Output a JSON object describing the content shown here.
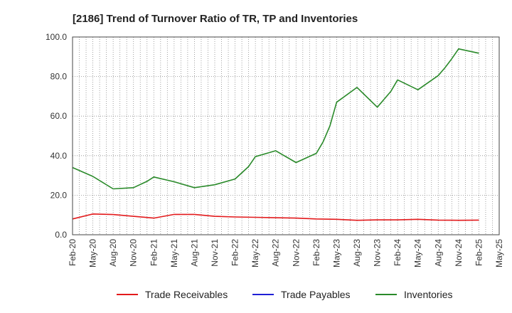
{
  "chart_data": {
    "type": "line",
    "title": "[2186]  Trend of Turnover Ratio of TR, TP and Inventories",
    "xlabel": "",
    "ylabel": "",
    "ylim": [
      0,
      100
    ],
    "yticks": [
      0,
      20,
      40,
      60,
      80,
      100
    ],
    "ytick_labels": [
      "0.0",
      "20.0",
      "40.0",
      "60.0",
      "80.0",
      "100.0"
    ],
    "x_tick_labels": [
      "Feb-20",
      "May-20",
      "Aug-20",
      "Nov-20",
      "Feb-21",
      "May-21",
      "Aug-21",
      "Nov-21",
      "Feb-22",
      "May-22",
      "Aug-22",
      "Nov-22",
      "Feb-23",
      "May-23",
      "Aug-23",
      "Nov-23",
      "Feb-24",
      "May-24",
      "Aug-24",
      "Nov-24",
      "Feb-25",
      "May-25"
    ],
    "x_months": [
      "2020-02",
      "2020-03",
      "2020-04",
      "2020-05",
      "2020-06",
      "2020-07",
      "2020-08",
      "2020-09",
      "2020-10",
      "2020-11",
      "2020-12",
      "2021-01",
      "2021-02",
      "2021-03",
      "2021-04",
      "2021-05",
      "2021-06",
      "2021-07",
      "2021-08",
      "2021-09",
      "2021-10",
      "2021-11",
      "2021-12",
      "2022-01",
      "2022-02",
      "2022-03",
      "2022-04",
      "2022-05",
      "2022-06",
      "2022-07",
      "2022-08",
      "2022-09",
      "2022-10",
      "2022-11",
      "2022-12",
      "2023-01",
      "2023-02",
      "2023-03",
      "2023-04",
      "2023-05",
      "2023-06",
      "2023-07",
      "2023-08",
      "2023-09",
      "2023-10",
      "2023-11",
      "2023-12",
      "2024-01",
      "2024-02",
      "2024-03",
      "2024-04",
      "2024-05",
      "2024-06",
      "2024-07",
      "2024-08",
      "2024-09",
      "2024-10",
      "2024-11",
      "2024-12",
      "2025-01",
      "2025-02",
      "2025-03",
      "2025-04",
      "2025-05"
    ],
    "grid": true,
    "legend_position": "bottom",
    "series": [
      {
        "name": "Trade Receivables",
        "color": "#e31a1c",
        "points": [
          [
            "2020-02",
            8.0
          ],
          [
            "2020-05",
            10.5
          ],
          [
            "2020-08",
            10.2
          ],
          [
            "2020-11",
            9.3
          ],
          [
            "2021-02",
            8.4
          ],
          [
            "2021-05",
            10.3
          ],
          [
            "2021-08",
            10.3
          ],
          [
            "2021-11",
            9.3
          ],
          [
            "2022-02",
            9.0
          ],
          [
            "2022-05",
            8.8
          ],
          [
            "2022-08",
            8.6
          ],
          [
            "2022-11",
            8.4
          ],
          [
            "2023-02",
            8.0
          ],
          [
            "2023-05",
            7.8
          ],
          [
            "2023-08",
            7.3
          ],
          [
            "2023-11",
            7.5
          ],
          [
            "2024-02",
            7.5
          ],
          [
            "2024-05",
            7.8
          ],
          [
            "2024-08",
            7.4
          ],
          [
            "2024-11",
            7.3
          ],
          [
            "2025-02",
            7.4
          ]
        ]
      },
      {
        "name": "Trade Payables",
        "color": "#1f1fd6",
        "points": []
      },
      {
        "name": "Inventories",
        "color": "#2a8a2a",
        "points": [
          [
            "2020-02",
            34.0
          ],
          [
            "2020-05",
            29.5
          ],
          [
            "2020-08",
            23.2
          ],
          [
            "2020-11",
            23.8
          ],
          [
            "2021-01",
            27.0
          ],
          [
            "2021-02",
            29.2
          ],
          [
            "2021-05",
            26.8
          ],
          [
            "2021-08",
            23.8
          ],
          [
            "2021-11",
            25.3
          ],
          [
            "2022-02",
            28.2
          ],
          [
            "2022-04",
            34.5
          ],
          [
            "2022-05",
            39.5
          ],
          [
            "2022-08",
            42.5
          ],
          [
            "2022-11",
            36.5
          ],
          [
            "2023-02",
            41.2
          ],
          [
            "2023-03",
            47.0
          ],
          [
            "2023-04",
            55.0
          ],
          [
            "2023-05",
            67.0
          ],
          [
            "2023-08",
            74.5
          ],
          [
            "2023-11",
            64.5
          ],
          [
            "2024-01",
            72.5
          ],
          [
            "2024-02",
            78.3
          ],
          [
            "2024-05",
            73.3
          ],
          [
            "2024-08",
            80.5
          ],
          [
            "2024-09",
            84.5
          ],
          [
            "2024-10",
            89.0
          ],
          [
            "2024-11",
            94.0
          ],
          [
            "2025-02",
            91.8
          ]
        ]
      }
    ]
  }
}
